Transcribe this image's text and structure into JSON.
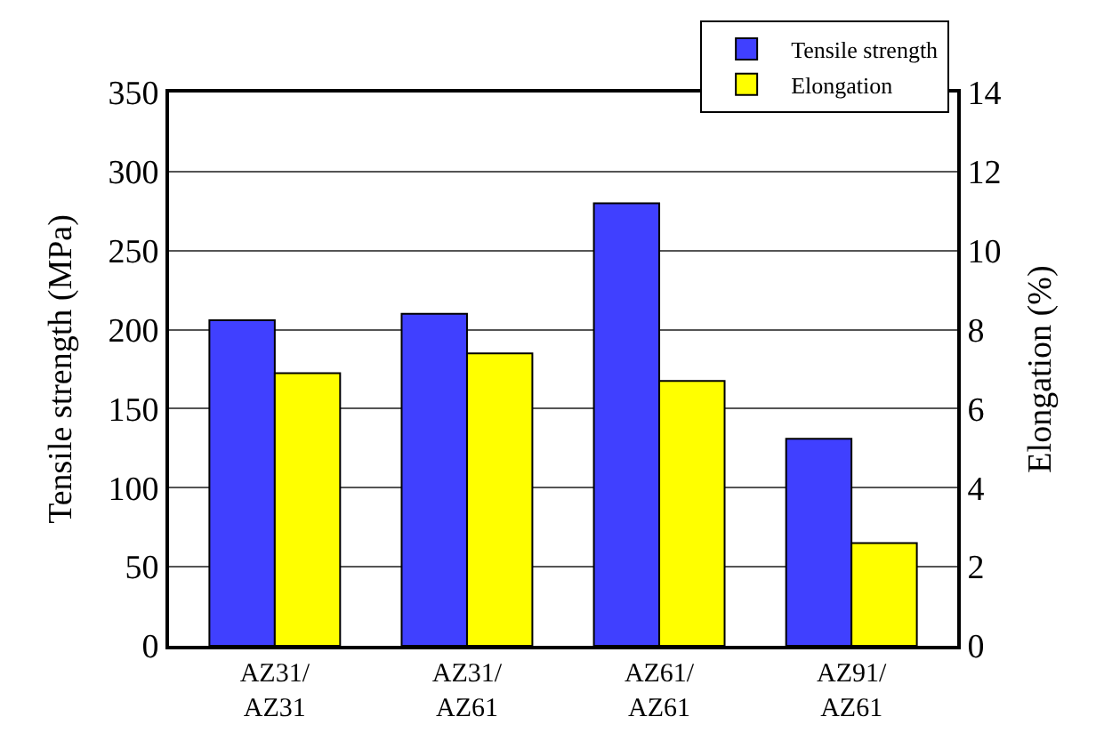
{
  "chart_data": {
    "type": "bar",
    "categories": [
      "AZ31/\nAZ31",
      "AZ31/\nAZ61",
      "AZ61/\nAZ61",
      "AZ91/\nAZ61"
    ],
    "series": [
      {
        "name": "Tensile strength",
        "color": "#4040ff",
        "values": [
          206,
          210,
          280,
          131
        ]
      },
      {
        "name": "Elongation",
        "color": "#ffff00",
        "values": [
          6.9,
          7.4,
          6.7,
          2.6
        ],
        "axis": "y2"
      }
    ],
    "ylabel": "Tensile strength (MPa)",
    "y2label": "Elongation (%)",
    "ylim": [
      0,
      350
    ],
    "yticks": [
      0,
      50,
      100,
      150,
      200,
      250,
      300,
      350
    ],
    "y2lim": [
      0,
      14
    ],
    "y2ticks": [
      0,
      2,
      4,
      6,
      8,
      10,
      12,
      14
    ],
    "grid": "y",
    "legend": "top right"
  }
}
